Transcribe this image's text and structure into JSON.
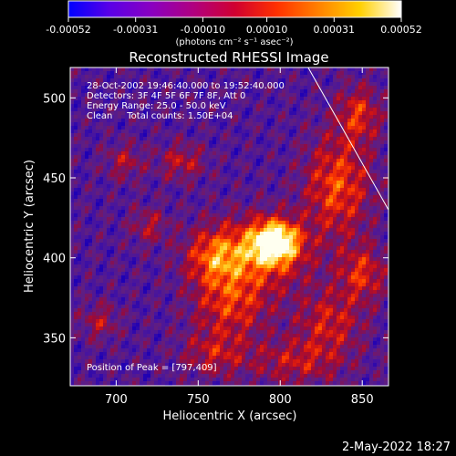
{
  "chart_data": {
    "type": "heatmap",
    "title": "Reconstructed RHESSI Image",
    "xlabel": "Heliocentric X (arcsec)",
    "ylabel": "Heliocentric Y (arcsec)",
    "xlim": [
      672,
      866
    ],
    "ylim": [
      320,
      519
    ],
    "x_ticks": [
      {
        "value": 700,
        "label": "700"
      },
      {
        "value": 750,
        "label": "750"
      },
      {
        "value": 800,
        "label": "800"
      },
      {
        "value": 850,
        "label": "850"
      }
    ],
    "y_ticks": [
      {
        "value": 350,
        "label": "350"
      },
      {
        "value": 400,
        "label": "400"
      },
      {
        "value": 450,
        "label": "450"
      },
      {
        "value": 500,
        "label": "500"
      }
    ],
    "colorbar": {
      "range": [
        -0.00052,
        0.00052
      ],
      "ticks": [
        {
          "value": -0.00052,
          "label": "-0.00052"
        },
        {
          "value": -0.00031,
          "label": "-0.00031"
        },
        {
          "value": -0.0001,
          "label": "-0.00010"
        },
        {
          "value": 0.0001,
          "label": "0.00010"
        },
        {
          "value": 0.00031,
          "label": "0.00031"
        },
        {
          "value": 0.00052,
          "label": "0.00052"
        }
      ],
      "unit_label": "(photons cm⁻² s⁻¹ asec⁻²)",
      "colors": [
        "#0000ff",
        "#5a00e6",
        "#8a00c0",
        "#b00080",
        "#d00030",
        "#ff3000",
        "#ff8000",
        "#ffd000",
        "#ffffff"
      ]
    },
    "info_lines": [
      "28-Oct-2002 19:46:40.000 to 19:52:40.000",
      "Detectors: 3F 4F 5F 6F 7F 8F, Att 0",
      "Energy Range: 25.0 - 50.0 keV",
      "Clean     Total counts: 1.50E+04"
    ],
    "peak_label": "Position of Peak = [797,409]",
    "peak_position": [
      797,
      409
    ],
    "limb_line": [
      [
        817,
        519
      ],
      [
        866,
        430
      ]
    ],
    "sources": [
      {
        "x": 797,
        "y": 410,
        "sx": 10,
        "sy": 9,
        "a": 1.0
      },
      {
        "x": 785,
        "y": 402,
        "sx": 22,
        "sy": 16,
        "a": 0.55
      },
      {
        "x": 760,
        "y": 400,
        "sx": 12,
        "sy": 12,
        "a": 0.45
      },
      {
        "x": 770,
        "y": 370,
        "sx": 16,
        "sy": 14,
        "a": 0.45
      },
      {
        "x": 835,
        "y": 445,
        "sx": 14,
        "sy": 22,
        "a": 0.55
      },
      {
        "x": 848,
        "y": 490,
        "sx": 9,
        "sy": 12,
        "a": 0.45
      },
      {
        "x": 830,
        "y": 360,
        "sx": 14,
        "sy": 14,
        "a": 0.4
      },
      {
        "x": 850,
        "y": 390,
        "sx": 10,
        "sy": 12,
        "a": 0.45
      },
      {
        "x": 740,
        "y": 460,
        "sx": 10,
        "sy": 8,
        "a": 0.35
      },
      {
        "x": 720,
        "y": 420,
        "sx": 8,
        "sy": 8,
        "a": 0.3
      },
      {
        "x": 705,
        "y": 460,
        "sx": 8,
        "sy": 8,
        "a": 0.3
      },
      {
        "x": 810,
        "y": 335,
        "sx": 20,
        "sy": 10,
        "a": 0.35
      },
      {
        "x": 760,
        "y": 340,
        "sx": 14,
        "sy": 10,
        "a": 0.35
      },
      {
        "x": 690,
        "y": 360,
        "sx": 8,
        "sy": 8,
        "a": 0.3
      }
    ]
  },
  "footer": {
    "date": "2-May-2022 18:27"
  }
}
